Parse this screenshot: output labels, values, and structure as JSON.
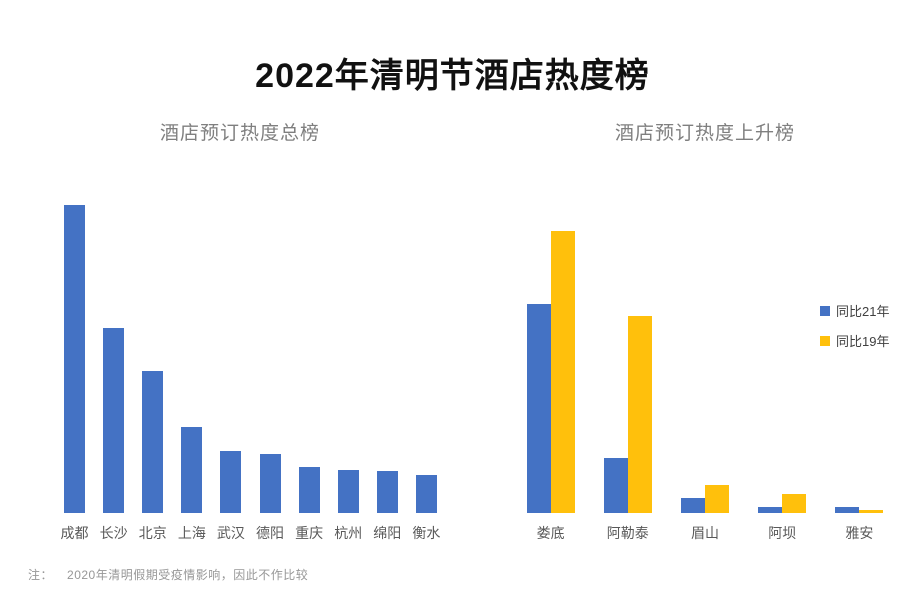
{
  "title": "2022年清明节酒店热度榜",
  "note": {
    "prefix": "注：",
    "text": "2020年清明假期受疫情影响，因此不作比较"
  },
  "chart_data": [
    {
      "type": "bar",
      "title": "酒店预订热度总榜",
      "categories": [
        "成都",
        "长沙",
        "北京",
        "上海",
        "武汉",
        "德阳",
        "重庆",
        "杭州",
        "绵阳",
        "衡水"
      ],
      "series": [
        {
          "name": "酒店预订热度",
          "color": "#4472C4",
          "values": [
            100,
            60,
            46,
            28,
            20,
            19,
            15,
            14,
            13.5,
            12.5
          ]
        }
      ],
      "ylim": [
        0,
        100
      ],
      "xlabel": "",
      "ylabel": "",
      "grid": false,
      "legend_position": "none",
      "y_axis_visible": false
    },
    {
      "type": "bar",
      "title": "酒店预订热度上升榜",
      "categories": [
        "娄底",
        "阿勒泰",
        "眉山",
        "阿坝",
        "雅安"
      ],
      "series": [
        {
          "name": "同比21年",
          "color": "#4472C4",
          "values": [
            74,
            19.5,
            5.3,
            2.2,
            2.2
          ]
        },
        {
          "name": "同比19年",
          "color": "#FFC00C",
          "values": [
            100,
            70,
            10,
            6.7,
            1.2
          ]
        }
      ],
      "ylim": [
        0,
        100
      ],
      "xlabel": "",
      "ylabel": "",
      "grid": false,
      "legend_position": "right",
      "y_axis_visible": false
    }
  ]
}
